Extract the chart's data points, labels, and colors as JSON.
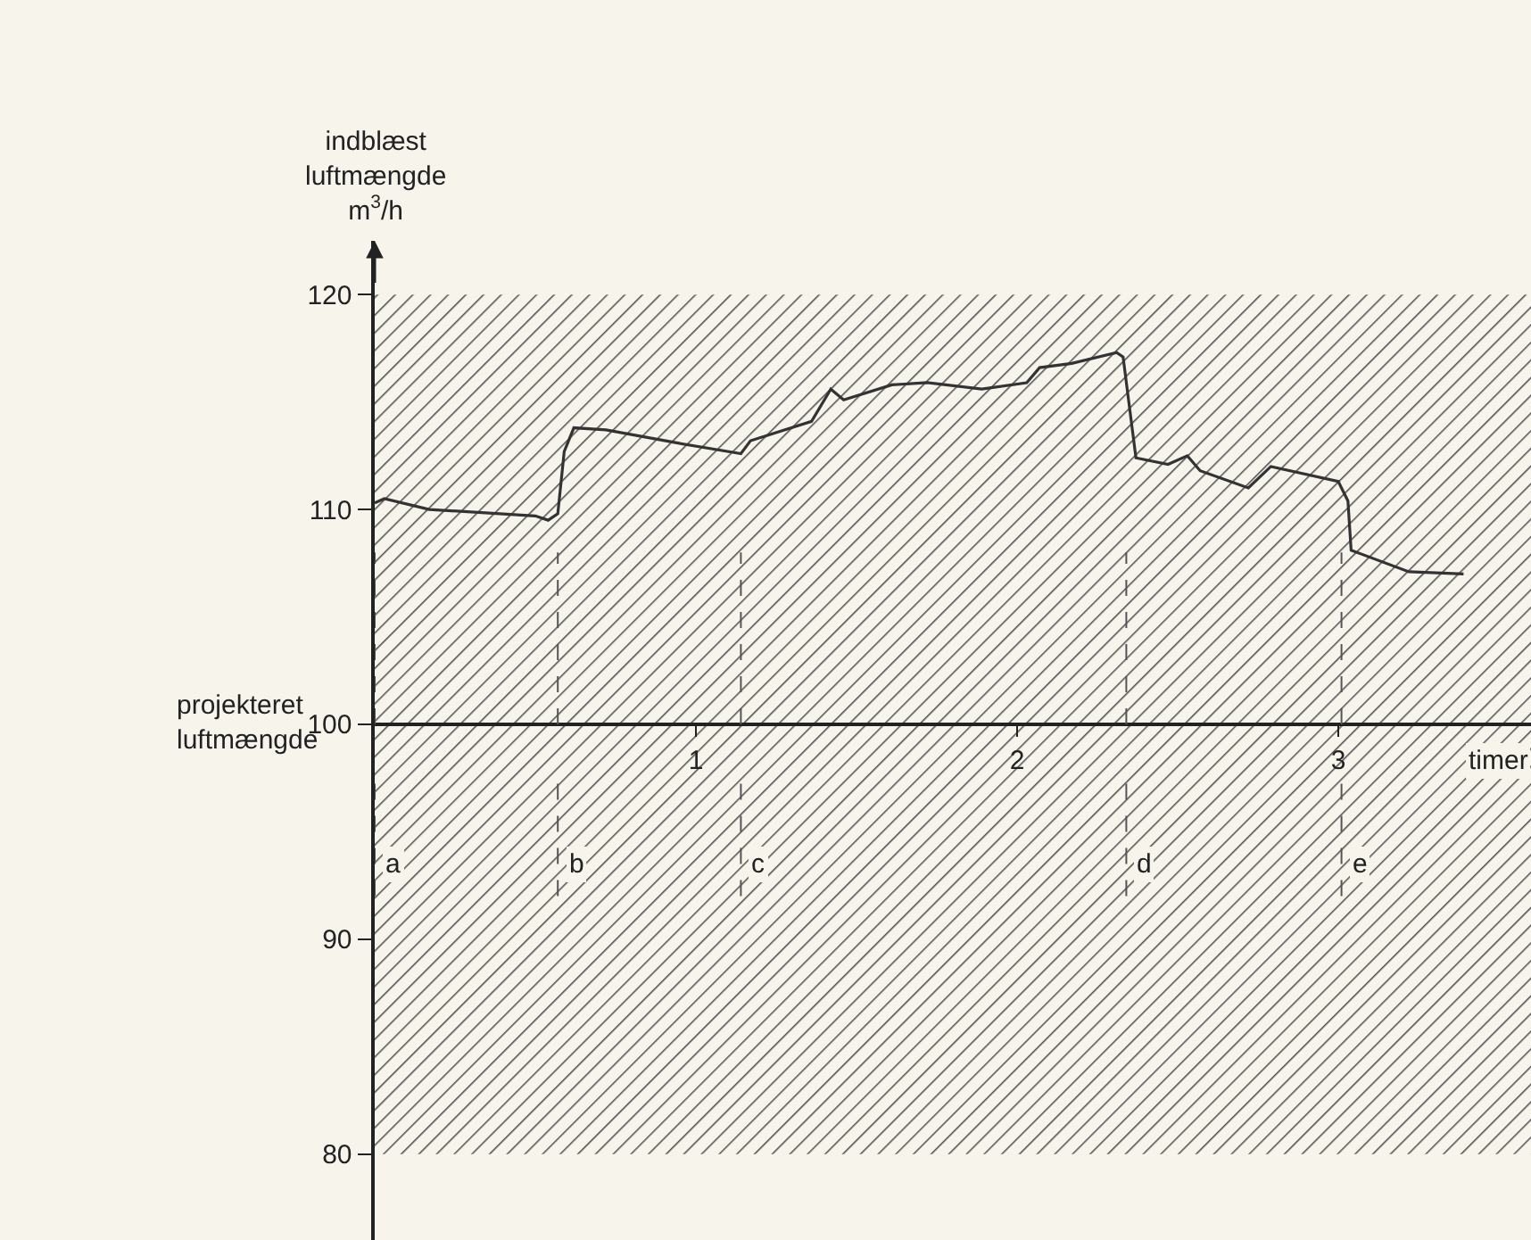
{
  "chart_data": {
    "type": "line",
    "xlabel": "timer",
    "ylabel": "indblæst luftmængde m$^{3}$/h",
    "x": [
      0,
      0.03,
      0.17,
      0.5,
      0.54,
      0.57,
      0.59,
      0.62,
      0.72,
      0.94,
      1.14,
      1.17,
      1.36,
      1.42,
      1.46,
      1.61,
      1.72,
      1.89,
      2.03,
      2.07,
      2.17,
      2.31,
      2.33,
      2.37,
      2.47,
      2.53,
      2.57,
      2.72,
      2.79,
      3,
      3.03,
      3.04,
      3.22,
      3.39
    ],
    "series": [
      {
        "color": "#333333",
        "values": [
          110.3,
          110.5,
          110,
          109.7,
          109.5,
          109.8,
          112.7,
          113.8,
          113.7,
          113.1,
          112.6,
          113.2,
          114.1,
          115.6,
          115.1,
          115.8,
          115.9,
          115.6,
          115.9,
          116.6,
          116.8,
          117.3,
          117.1,
          112.4,
          112.1,
          112.5,
          111.8,
          111,
          112,
          111.3,
          110.4,
          108.1,
          107.1,
          107
        ]
      }
    ],
    "xlim": [
      0,
      3.6
    ],
    "ylim": [
      76,
      122.5
    ],
    "xticks": [
      1,
      2,
      3
    ],
    "yticks": [
      80,
      90,
      100,
      110,
      120
    ],
    "bands": [
      {
        "axis": "y",
        "from": 80,
        "to": 120,
        "color": "#555555"
      }
    ],
    "annotations": [
      "projekteret luftmængde"
    ],
    "ref_lines": [
      {
        "axis": "x",
        "value": 0,
        "label": "a",
        "color": "#555555",
        "line_style": "dashed"
      },
      {
        "axis": "x",
        "value": 0.57,
        "label": "b",
        "color": "#555555",
        "line_style": "dashed"
      },
      {
        "axis": "x",
        "value": 1.14,
        "label": "c",
        "color": "#555555",
        "line_style": "dashed"
      },
      {
        "axis": "x",
        "value": 2.34,
        "label": "d",
        "color": "#555555",
        "line_style": "dashed"
      },
      {
        "axis": "x",
        "value": 3.01,
        "label": "e",
        "color": "#555555",
        "line_style": "dashed"
      }
    ],
    "grid": false,
    "marker": "none",
    "line_style": "solid"
  }
}
